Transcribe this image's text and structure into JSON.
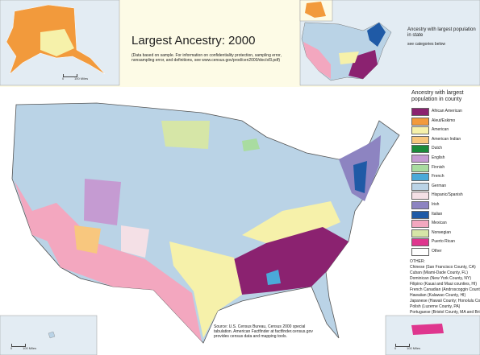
{
  "header": {
    "title": "Largest Ancestry: 2000",
    "note": "(Data based on sample. For information on confidentiality protection, sampling error, nonsampling error, and definitions, see www.census.gov/prod/cen2000/doc/sf3.pdf)"
  },
  "state_inset": {
    "title": "Ancestry with largest population in state",
    "subtitle": "see categories below"
  },
  "legend": {
    "title": "Ancestry with largest population in county",
    "items": [
      {
        "label": "African American",
        "color": "#8b2270"
      },
      {
        "label": "Aleut/Eskimo",
        "color": "#f29a3c"
      },
      {
        "label": "American",
        "color": "#f6f1aa"
      },
      {
        "label": "American Indian",
        "color": "#f8c77e"
      },
      {
        "label": "Dutch",
        "color": "#1b8a3a"
      },
      {
        "label": "English",
        "color": "#c59bd2"
      },
      {
        "label": "Finnish",
        "color": "#a9dca0"
      },
      {
        "label": "French",
        "color": "#4ba9d9"
      },
      {
        "label": "German",
        "color": "#bad3e6"
      },
      {
        "label": "Hispanic/Spanish",
        "color": "#f4e0e6"
      },
      {
        "label": "Irish",
        "color": "#8d84c1"
      },
      {
        "label": "Italian",
        "color": "#1f5aa6"
      },
      {
        "label": "Mexican",
        "color": "#f3a7bf"
      },
      {
        "label": "Norwegian",
        "color": "#d6e6a7"
      },
      {
        "label": "Puerto Rican",
        "color": "#df368e"
      },
      {
        "label": "Other",
        "color": "#ffffff"
      }
    ]
  },
  "other": {
    "title": "OTHER:",
    "items": [
      "Chinese (San Francisco County, CA)",
      "Cuban (Miami-Dade County, FL)",
      "Dominican (New York County, NY)",
      "Filipino (Kauai and Maui counties, HI)",
      "French Canadian (Androscoggin County, ME)",
      "Hawaiian (Kalawao County, HI)",
      "Japanese (Hawaii County; Honolulu County; HI)",
      "Polish (Luzerne County, PA)",
      "Portuguese (Bristol County, MA and Bristol County, RI)"
    ]
  },
  "source": "Source: U.S. Census Bureau, Census 2000 special tabulation. American Factfinder at factfinder.census.gov provides census data and mapping tools.",
  "scale": {
    "zero": "0",
    "label": "100 Miles"
  }
}
